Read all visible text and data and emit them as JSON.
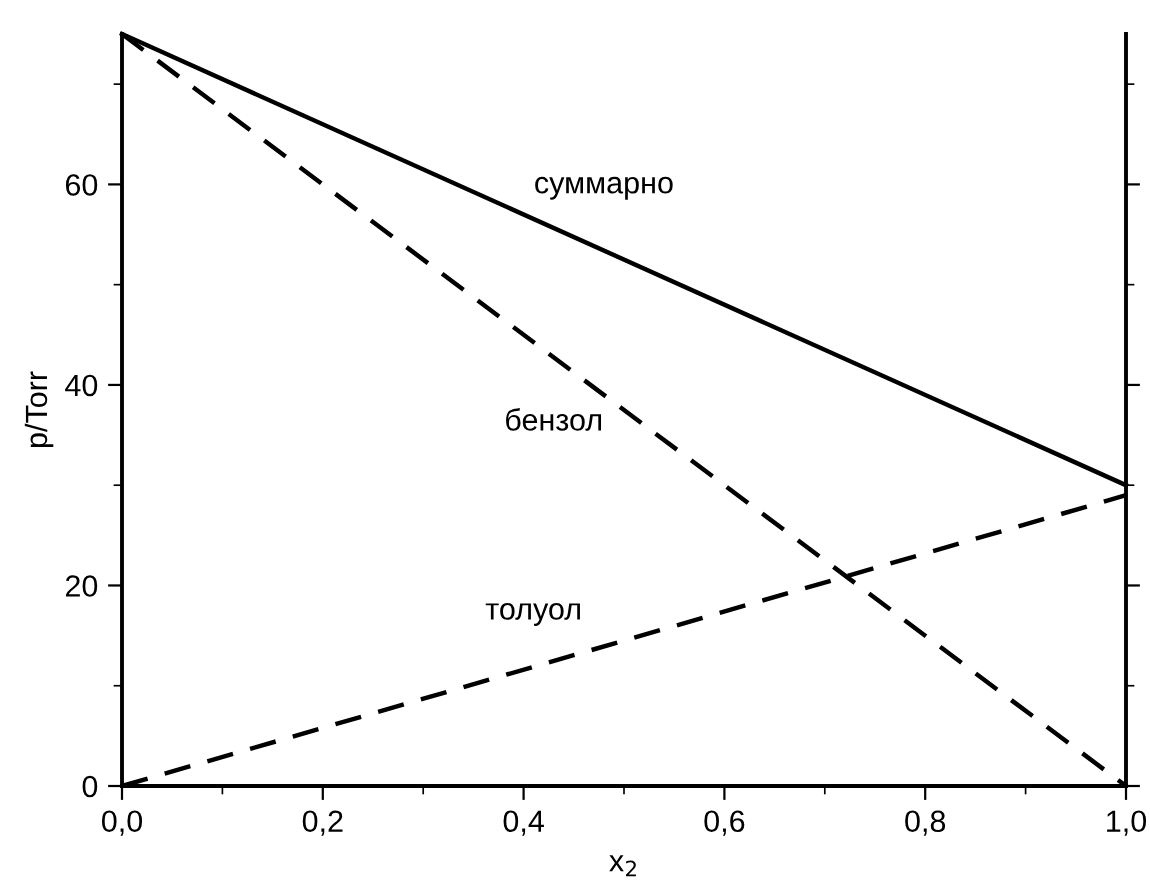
{
  "chart_data": {
    "type": "line",
    "xlabel": "x$_{2}$",
    "ylabel": "p/Torr",
    "x": [
      0,
      1
    ],
    "series": [
      {
        "name": "суммарно",
        "color": "#000000",
        "values": [
          75,
          30
        ],
        "line_style": "solid"
      },
      {
        "name": "бензол",
        "color": "#000000",
        "values": [
          75,
          0
        ],
        "line_style": "dashed"
      },
      {
        "name": "толуол",
        "color": "#000000",
        "values": [
          0,
          29
        ],
        "line_style": "dashed"
      }
    ],
    "xlim": [
      0,
      1
    ],
    "ylim": [
      0,
      75
    ],
    "xticks": [
      {
        "value": 0,
        "label": "0,0"
      },
      {
        "value": 0.2,
        "label": "0,2"
      },
      {
        "value": 0.4,
        "label": "0,4"
      },
      {
        "value": 0.6,
        "label": "0,6"
      },
      {
        "value": 0.8,
        "label": "0,8"
      },
      {
        "value": 1,
        "label": "1,0"
      }
    ],
    "yticks": [
      0,
      20,
      40,
      60
    ],
    "grid": false,
    "legend": false,
    "marker": "none"
  }
}
